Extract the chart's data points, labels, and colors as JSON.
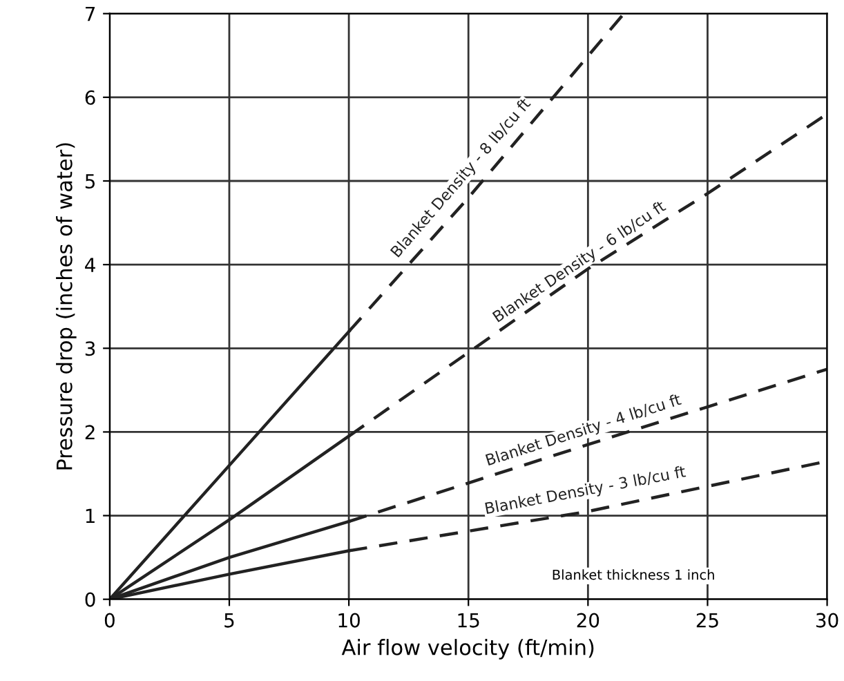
{
  "chart_data": {
    "type": "line",
    "xlabel": "Air flow velocity (ft/min)",
    "ylabel": "Pressure drop (inches of water)",
    "xlim": [
      0,
      30
    ],
    "ylim": [
      0,
      7
    ],
    "xticks": [
      0,
      5,
      10,
      15,
      20,
      25,
      30
    ],
    "yticks": [
      0,
      1,
      2,
      3,
      4,
      5,
      6,
      7
    ],
    "grid": true,
    "legend": false,
    "series": [
      {
        "color": "#222222",
        "line_style": "solid",
        "x": [
          0,
          5,
          10
        ],
        "values": [
          0,
          1.6,
          3.2
        ]
      },
      {
        "name": "Blanket Density - 8 lb/cu ft",
        "color": "#222222",
        "line_style": "dashed",
        "x": [
          10,
          15,
          21.5
        ],
        "values": [
          3.2,
          4.8,
          7.0
        ]
      },
      {
        "color": "#222222",
        "line_style": "solid",
        "x": [
          0,
          5,
          10
        ],
        "values": [
          0,
          0.95,
          1.95
        ]
      },
      {
        "name": "Blanket Density - 6 lb/cu ft",
        "color": "#222222",
        "line_style": "dashed",
        "x": [
          10,
          20,
          25,
          30
        ],
        "values": [
          1.95,
          3.95,
          4.85,
          5.8
        ]
      },
      {
        "color": "#222222",
        "line_style": "solid",
        "x": [
          0,
          5,
          10
        ],
        "values": [
          0,
          0.5,
          0.93
        ]
      },
      {
        "name": "Blanket Density - 4 lb/cu ft",
        "color": "#222222",
        "line_style": "dashed",
        "x": [
          10,
          20,
          25,
          30
        ],
        "values": [
          0.93,
          1.85,
          2.3,
          2.75
        ]
      },
      {
        "color": "#222222",
        "line_style": "solid",
        "x": [
          0,
          5,
          10
        ],
        "values": [
          0,
          0.3,
          0.58
        ]
      },
      {
        "name": "Blanket Density - 3 lb/cu ft",
        "color": "#222222",
        "line_style": "dashed",
        "x": [
          10,
          20,
          25,
          30
        ],
        "values": [
          0.58,
          1.05,
          1.35,
          1.65
        ]
      }
    ],
    "annotations": [
      "Blanket thickness 1 inch"
    ]
  }
}
